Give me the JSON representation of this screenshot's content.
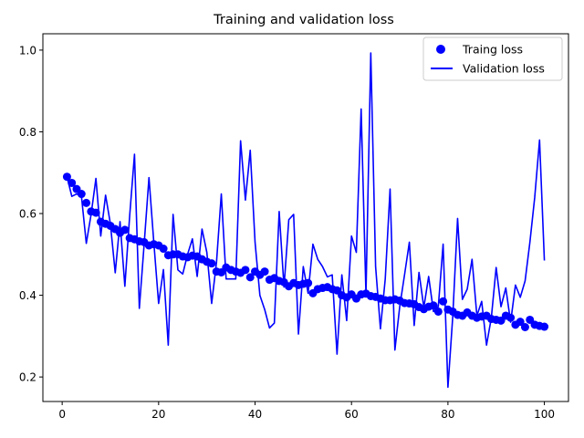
{
  "chart_data": {
    "type": "line",
    "title": "Training and validation loss",
    "xlabel": "",
    "ylabel": "",
    "xlim": [
      -4,
      105
    ],
    "ylim": [
      0.14,
      1.04
    ],
    "xticks": [
      0,
      20,
      40,
      60,
      80,
      100
    ],
    "yticks": [
      0.2,
      0.4,
      0.6,
      0.8,
      1.0
    ],
    "ytick_labels": [
      "0.2",
      "0.4",
      "0.6",
      "0.8",
      "1.0"
    ],
    "grid": false,
    "legend_position": "top-right",
    "x": [
      1,
      2,
      3,
      4,
      5,
      6,
      7,
      8,
      9,
      10,
      11,
      12,
      13,
      14,
      15,
      16,
      17,
      18,
      19,
      20,
      21,
      22,
      23,
      24,
      25,
      26,
      27,
      28,
      29,
      30,
      31,
      32,
      33,
      34,
      35,
      36,
      37,
      38,
      39,
      40,
      41,
      42,
      43,
      44,
      45,
      46,
      47,
      48,
      49,
      50,
      51,
      52,
      53,
      54,
      55,
      56,
      57,
      58,
      59,
      60,
      61,
      62,
      63,
      64,
      65,
      66,
      67,
      68,
      69,
      70,
      71,
      72,
      73,
      74,
      75,
      76,
      77,
      78,
      79,
      80,
      81,
      82,
      83,
      84,
      85,
      86,
      87,
      88,
      89,
      90,
      91,
      92,
      93,
      94,
      95,
      96,
      97,
      98,
      99,
      100
    ],
    "series": [
      {
        "name": "Traing loss",
        "style": "dots",
        "color": "#0000ff",
        "values": [
          0.69,
          0.675,
          0.66,
          0.648,
          0.626,
          0.605,
          0.602,
          0.58,
          0.575,
          0.57,
          0.562,
          0.553,
          0.56,
          0.54,
          0.537,
          0.532,
          0.53,
          0.522,
          0.525,
          0.522,
          0.514,
          0.498,
          0.5,
          0.5,
          0.495,
          0.493,
          0.497,
          0.495,
          0.488,
          0.482,
          0.478,
          0.458,
          0.456,
          0.468,
          0.462,
          0.458,
          0.455,
          0.462,
          0.444,
          0.458,
          0.45,
          0.458,
          0.438,
          0.442,
          0.435,
          0.432,
          0.422,
          0.43,
          0.425,
          0.428,
          0.43,
          0.405,
          0.415,
          0.418,
          0.42,
          0.415,
          0.412,
          0.4,
          0.395,
          0.402,
          0.392,
          0.402,
          0.404,
          0.398,
          0.396,
          0.392,
          0.388,
          0.388,
          0.39,
          0.387,
          0.381,
          0.38,
          0.378,
          0.371,
          0.366,
          0.372,
          0.375,
          0.36,
          0.385,
          0.365,
          0.36,
          0.352,
          0.35,
          0.358,
          0.35,
          0.345,
          0.348,
          0.35,
          0.342,
          0.34,
          0.338,
          0.35,
          0.345,
          0.328,
          0.335,
          0.322,
          0.34,
          0.328,
          0.325,
          0.323
        ]
      },
      {
        "name": "Validation loss",
        "style": "line",
        "color": "#0000ff",
        "values": [
          0.69,
          0.642,
          0.648,
          0.642,
          0.527,
          0.598,
          0.686,
          0.545,
          0.645,
          0.575,
          0.455,
          0.58,
          0.422,
          0.595,
          0.745,
          0.368,
          0.525,
          0.688,
          0.53,
          0.38,
          0.463,
          0.278,
          0.598,
          0.462,
          0.452,
          0.5,
          0.538,
          0.446,
          0.562,
          0.505,
          0.38,
          0.48,
          0.648,
          0.44,
          0.44,
          0.44,
          0.778,
          0.633,
          0.755,
          0.53,
          0.4,
          0.365,
          0.32,
          0.332,
          0.605,
          0.42,
          0.585,
          0.598,
          0.305,
          0.47,
          0.405,
          0.525,
          0.488,
          0.47,
          0.445,
          0.45,
          0.256,
          0.45,
          0.338,
          0.545,
          0.505,
          0.856,
          0.402,
          0.993,
          0.47,
          0.318,
          0.44,
          0.66,
          0.266,
          0.372,
          0.45,
          0.53,
          0.326,
          0.456,
          0.37,
          0.446,
          0.36,
          0.372,
          0.525,
          0.175,
          0.348,
          0.588,
          0.39,
          0.415,
          0.488,
          0.35,
          0.385,
          0.278,
          0.345,
          0.468,
          0.372,
          0.418,
          0.334,
          0.425,
          0.395,
          0.435,
          0.53,
          0.64,
          0.78,
          0.485
        ]
      }
    ]
  }
}
